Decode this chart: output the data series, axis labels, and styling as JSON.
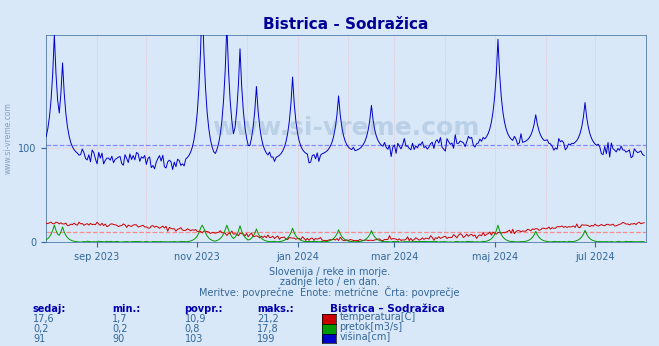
{
  "title": "Bistrica - Sodražica",
  "background_color": "#d8e8f8",
  "plot_bg_color": "#d8e8f8",
  "fig_bg_color": "#d8e8f8",
  "subtitle_lines": [
    "Slovenija / reke in morje.",
    "zadnje leto / en dan.",
    "Meritve: povprečne  Enote: metrične  Črta: povprečje"
  ],
  "watermark": "www.si-vreme.com",
  "x_tick_labels": [
    "sep 2023",
    "nov 2023",
    "jan 2024",
    "mar 2024",
    "maj 2024",
    "jul 2024"
  ],
  "ylim": [
    0,
    220
  ],
  "y_ticks": [
    0,
    100
  ],
  "n_days": 365,
  "temperatura_color": "#cc0000",
  "pretok_color": "#009900",
  "visina_color": "#0000cc",
  "temperatura_avg": 10.9,
  "pretok_avg": 0.8,
  "visina_avg": 103,
  "temperatura_avg_color": "#ff8888",
  "visina_avg_color": "#8888ff",
  "grid_color": "#ffaaaa",
  "table_headers": [
    "sedaj:",
    "min.:",
    "povpr.:",
    "maks.:"
  ],
  "table_col1": [
    "17,6",
    "0,2",
    "91"
  ],
  "table_col2": [
    "1,7",
    "0,2",
    "90"
  ],
  "table_col3": [
    "10,9",
    "0,8",
    "103"
  ],
  "table_col4": [
    "21,2",
    "17,8",
    "199"
  ],
  "legend_station": "Bistrica – Sodražica",
  "legend_items": [
    "temperatura[C]",
    "pretok[m3/s]",
    "višina[cm]"
  ],
  "legend_colors": [
    "#cc0000",
    "#009900",
    "#0000cc"
  ],
  "label_color": "#336699",
  "title_color": "#000099",
  "watermark_color": "#336699",
  "watermark_alpha": 0.18,
  "x_tick_positions": [
    31,
    92,
    153,
    212,
    273,
    334
  ],
  "month_positions": [
    0,
    31,
    61,
    92,
    122,
    153,
    184,
    212,
    243,
    273,
    304,
    334,
    365
  ],
  "spike_positions": [
    5,
    10,
    95,
    110,
    118,
    128,
    150,
    178,
    198,
    275,
    298,
    328
  ],
  "spike_heights": [
    220,
    190,
    260,
    230,
    205,
    165,
    175,
    155,
    145,
    215,
    135,
    148
  ]
}
